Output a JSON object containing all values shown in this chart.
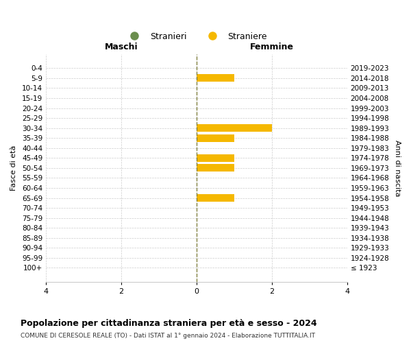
{
  "age_groups": [
    "100+",
    "95-99",
    "90-94",
    "85-89",
    "80-84",
    "75-79",
    "70-74",
    "65-69",
    "60-64",
    "55-59",
    "50-54",
    "45-49",
    "40-44",
    "35-39",
    "30-34",
    "25-29",
    "20-24",
    "15-19",
    "10-14",
    "5-9",
    "0-4"
  ],
  "birth_years": [
    "≤ 1923",
    "1924-1928",
    "1929-1933",
    "1934-1938",
    "1939-1943",
    "1944-1948",
    "1949-1953",
    "1954-1958",
    "1959-1963",
    "1964-1968",
    "1969-1973",
    "1974-1978",
    "1979-1983",
    "1984-1988",
    "1989-1993",
    "1994-1998",
    "1999-2003",
    "2004-2008",
    "2009-2013",
    "2014-2018",
    "2019-2023"
  ],
  "males": [
    0,
    0,
    0,
    0,
    0,
    0,
    0,
    0,
    0,
    0,
    0,
    0,
    0,
    0,
    0,
    0,
    0,
    0,
    0,
    0,
    0
  ],
  "females": [
    0,
    0,
    0,
    0,
    0,
    0,
    0,
    1,
    0,
    0,
    1,
    1,
    0,
    1,
    2,
    0,
    0,
    0,
    0,
    1,
    0
  ],
  "male_color": "#6b8e4e",
  "female_color": "#f5b800",
  "background_color": "#ffffff",
  "grid_color": "#cccccc",
  "title": "Popolazione per cittadinanza straniera per età e sesso - 2024",
  "subtitle": "COMUNE DI CERESOLE REALE (TO) - Dati ISTAT al 1° gennaio 2024 - Elaborazione TUTTITALIA.IT",
  "xlabel_left": "Maschi",
  "xlabel_right": "Femmine",
  "ylabel_left": "Fasce di età",
  "ylabel_right": "Anni di nascita",
  "legend_male": "Stranieri",
  "legend_female": "Straniere",
  "xlim": 4,
  "center_line_color": "#808040"
}
